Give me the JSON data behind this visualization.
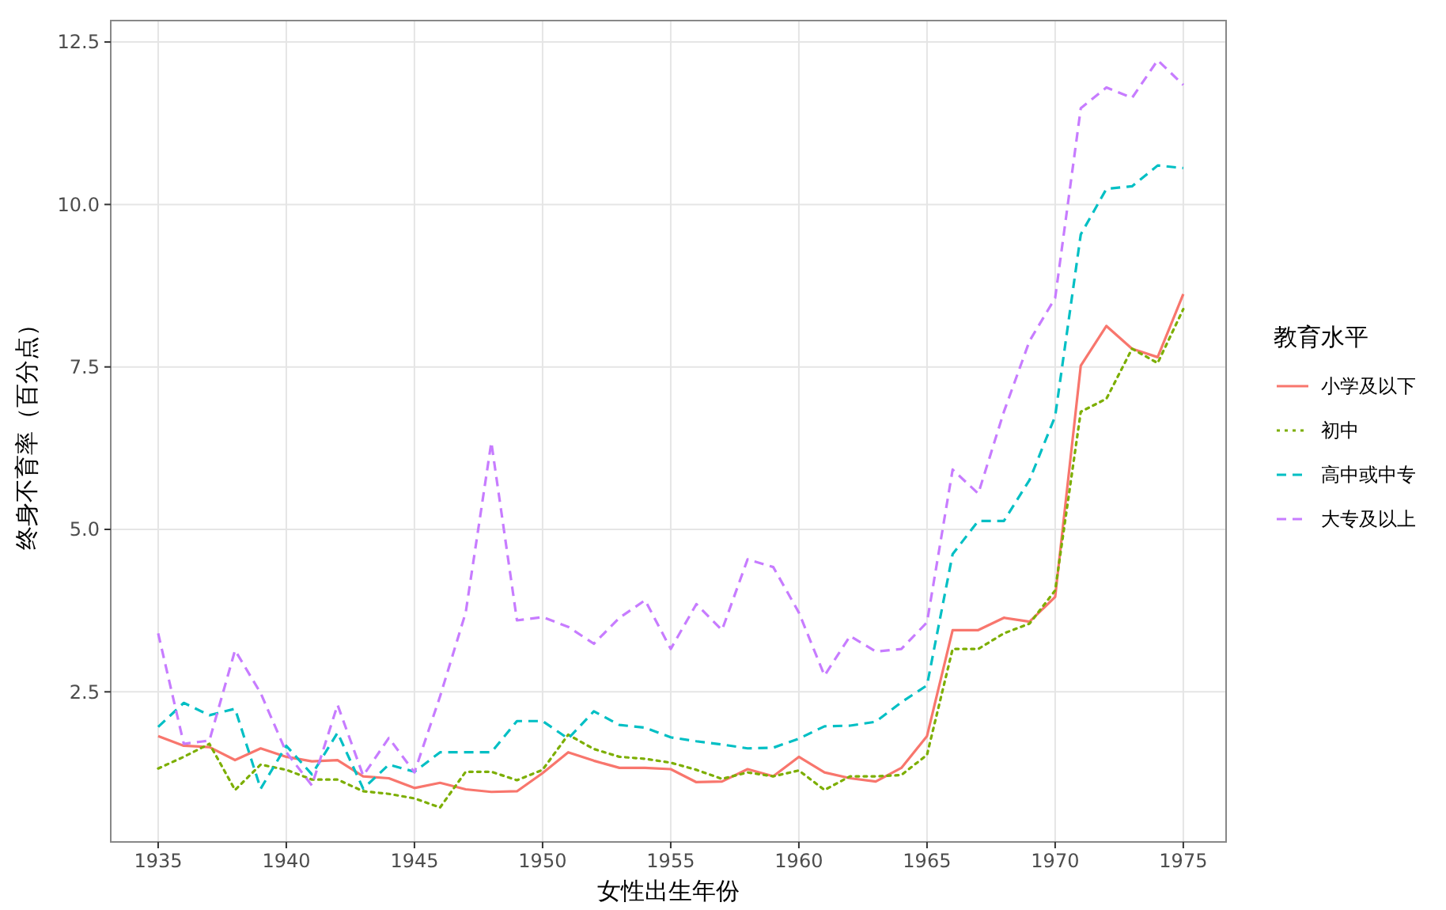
{
  "chart_data": {
    "type": "line",
    "xlabel": "女性出生年份",
    "ylabel": "终身不育率（百分点）",
    "legend_title": "教育水平",
    "legend": "right",
    "grid": true,
    "x": [
      1935,
      1936,
      1937,
      1938,
      1939,
      1940,
      1941,
      1942,
      1943,
      1944,
      1945,
      1946,
      1947,
      1948,
      1949,
      1950,
      1951,
      1952,
      1953,
      1954,
      1955,
      1956,
      1957,
      1958,
      1959,
      1960,
      1961,
      1962,
      1963,
      1964,
      1965,
      1966,
      1967,
      1968,
      1969,
      1970,
      1971,
      1972,
      1973,
      1974,
      1975
    ],
    "xlim": [
      1933.15,
      1976.67
    ],
    "xticks": [
      1935,
      1940,
      1945,
      1950,
      1955,
      1960,
      1965,
      1970,
      1975
    ],
    "ylim": [
      0.19,
      12.83
    ],
    "yticks": [
      2.5,
      {
        "value": 5,
        "label": "5.0"
      },
      7.5,
      {
        "value": 10,
        "label": "10.0"
      },
      12.5
    ],
    "series": [
      {
        "name": "小学及以下",
        "color": "#f8766d",
        "line_style": "solid",
        "values": [
          1.82,
          1.67,
          1.65,
          1.45,
          1.63,
          1.5,
          1.43,
          1.45,
          1.2,
          1.17,
          1.02,
          1.1,
          1.0,
          0.96,
          0.97,
          1.25,
          1.57,
          1.44,
          1.33,
          1.33,
          1.31,
          1.11,
          1.12,
          1.31,
          1.2,
          1.5,
          1.26,
          1.17,
          1.12,
          1.33,
          1.82,
          3.45,
          3.45,
          3.64,
          3.58,
          3.96,
          7.52,
          8.13,
          7.78,
          7.65,
          8.62
        ]
      },
      {
        "name": "初中",
        "color": "#7cae00",
        "line_style": "dotted",
        "values": [
          1.32,
          1.5,
          1.7,
          0.99,
          1.38,
          1.3,
          1.15,
          1.15,
          0.97,
          0.93,
          0.86,
          0.72,
          1.27,
          1.27,
          1.14,
          1.3,
          1.84,
          1.62,
          1.5,
          1.47,
          1.41,
          1.3,
          1.16,
          1.26,
          1.2,
          1.29,
          0.99,
          1.2,
          1.2,
          1.22,
          1.53,
          3.16,
          3.16,
          3.4,
          3.55,
          4.06,
          6.81,
          7.01,
          7.78,
          7.56,
          8.39
        ]
      },
      {
        "name": "高中或中专",
        "color": "#00bfc4",
        "line_style": "dashed",
        "values": [
          1.96,
          2.33,
          2.14,
          2.24,
          1.01,
          1.67,
          1.23,
          1.87,
          1.01,
          1.38,
          1.27,
          1.57,
          1.57,
          1.57,
          2.05,
          2.05,
          1.78,
          2.2,
          1.99,
          1.95,
          1.8,
          1.74,
          1.69,
          1.63,
          1.64,
          1.78,
          1.97,
          1.98,
          2.04,
          2.34,
          2.6,
          4.62,
          5.13,
          5.13,
          5.76,
          6.74,
          9.54,
          10.24,
          10.28,
          10.6,
          10.56
        ]
      },
      {
        "name": "大专及以上",
        "color": "#c77cff",
        "line_style": "dashed",
        "values": [
          3.4,
          1.7,
          1.75,
          3.14,
          2.48,
          1.57,
          1.06,
          2.3,
          1.21,
          1.79,
          1.26,
          2.43,
          3.72,
          6.34,
          3.6,
          3.65,
          3.5,
          3.24,
          3.64,
          3.91,
          3.16,
          3.85,
          3.45,
          4.54,
          4.42,
          3.72,
          2.75,
          3.36,
          3.12,
          3.16,
          3.57,
          5.92,
          5.55,
          6.81,
          7.9,
          8.56,
          11.48,
          11.8,
          11.64,
          12.22,
          11.84
        ]
      }
    ]
  }
}
